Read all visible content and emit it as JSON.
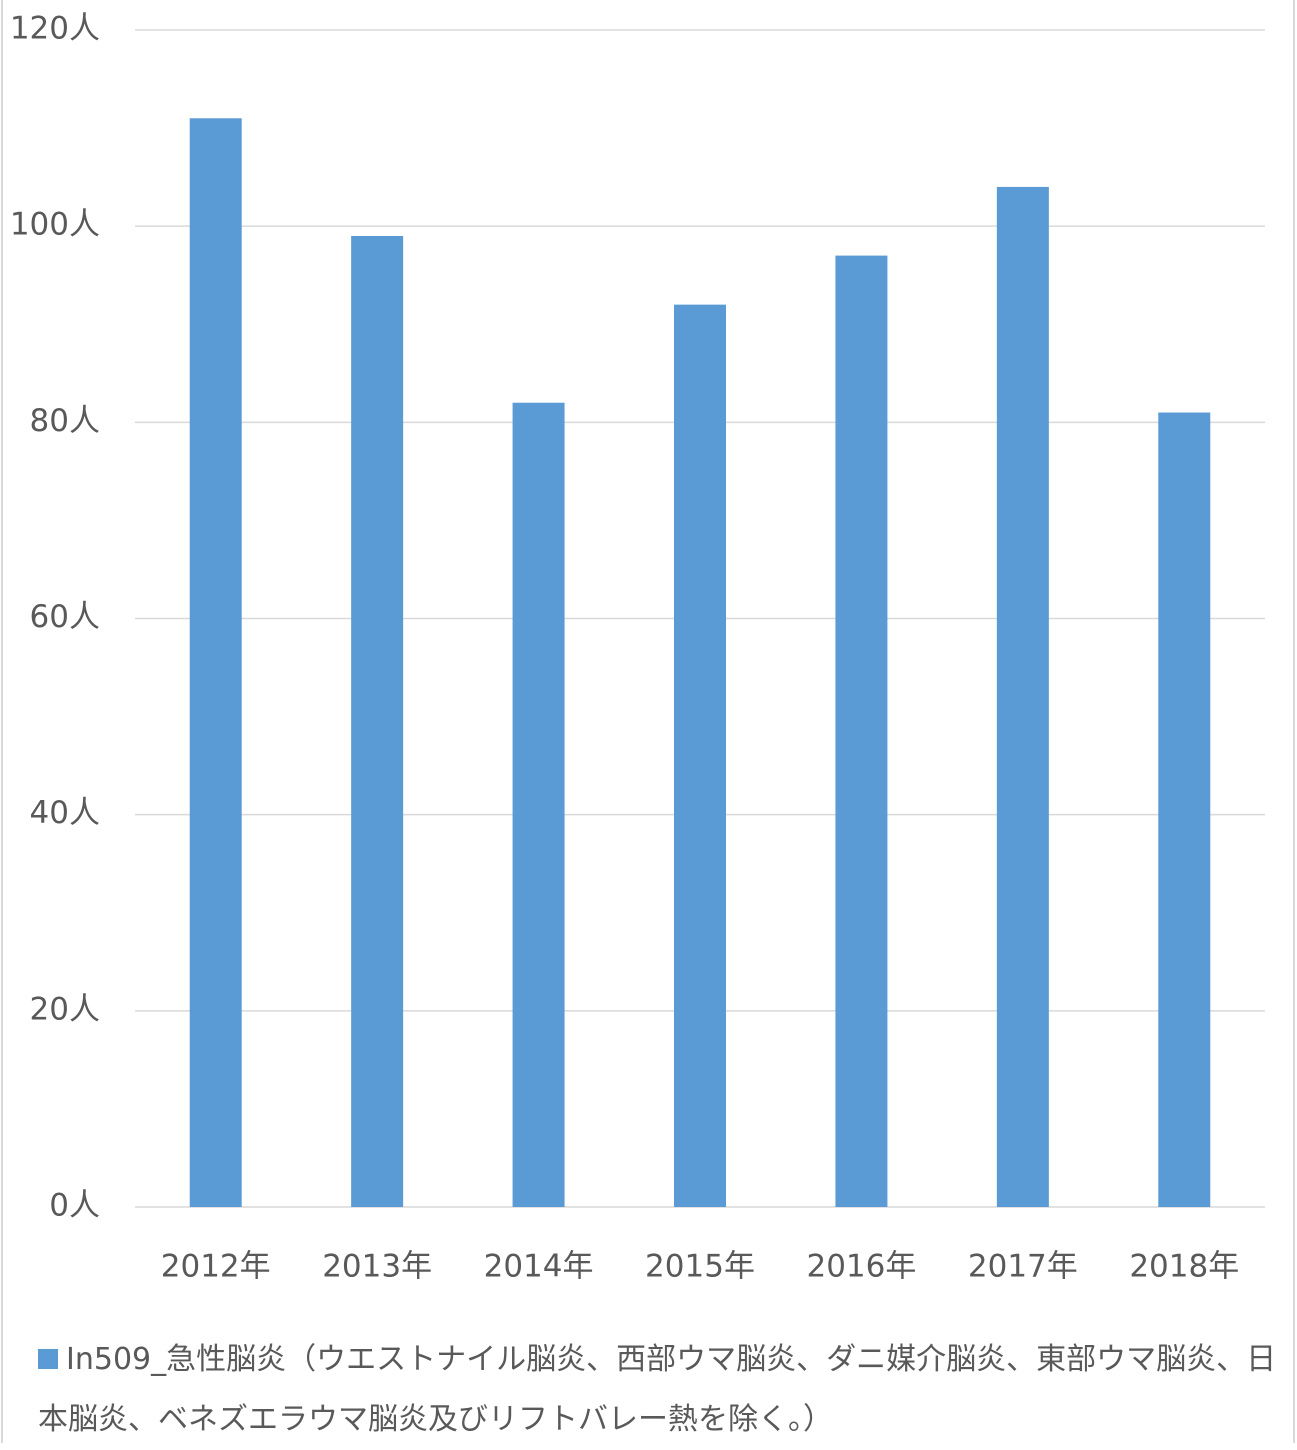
{
  "chart_data": {
    "type": "bar",
    "categories": [
      "2012年",
      "2013年",
      "2014年",
      "2015年",
      "2016年",
      "2017年",
      "2018年"
    ],
    "series": [
      {
        "name": "In509_急性脳炎（ウエストナイル脳炎、西部ウマ脳炎、ダニ媒介脳炎、東部ウマ脳炎、日本脳炎、ベネズエラウマ脳炎及びリフトバレー熱を除く。）",
        "color": "#5b9bd5",
        "values": [
          111,
          99,
          82,
          92,
          97,
          104,
          81
        ]
      }
    ],
    "ylim": [
      0,
      120
    ],
    "yticks": [
      {
        "value": 0,
        "label": "0人"
      },
      {
        "value": 20,
        "label": "20人"
      },
      {
        "value": 40,
        "label": "40人"
      },
      {
        "value": 60,
        "label": "60人"
      },
      {
        "value": 80,
        "label": "80人"
      },
      {
        "value": 100,
        "label": "100人"
      },
      {
        "value": 120,
        "label": "120人"
      }
    ],
    "grid": true,
    "legend": "bottom"
  }
}
